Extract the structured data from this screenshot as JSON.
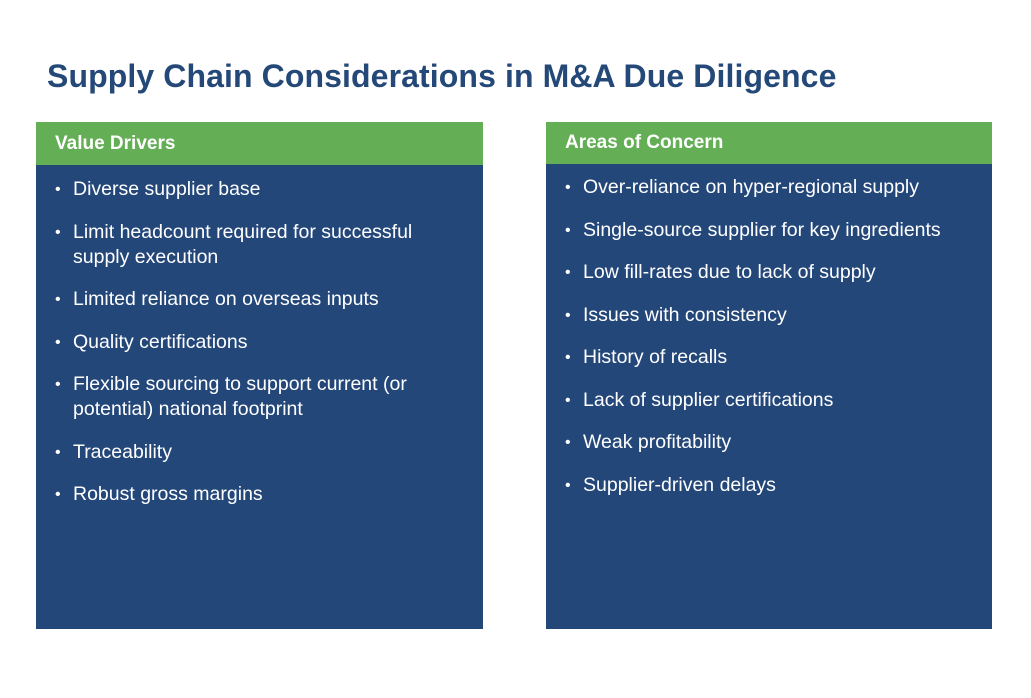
{
  "page": {
    "title": "Supply Chain Considerations in M&A Due Diligence"
  },
  "value_drivers": {
    "header": "Value Drivers",
    "items": [
      "Diverse supplier base",
      "Limit headcount required for successful supply execution",
      "Limited reliance on overseas inputs",
      "Quality certifications",
      "Flexible sourcing to support current (or potential) national footprint",
      "Traceability",
      "Robust gross margins"
    ]
  },
  "areas_of_concern": {
    "header": "Areas of Concern",
    "items": [
      "Over-reliance on hyper-regional supply",
      "Single-source supplier for key ingredients",
      "Low fill-rates due to lack of supply",
      "Issues with consistency",
      "History of recalls",
      "Lack of supplier certifications",
      "Weak profitability",
      "Supplier-driven delays"
    ]
  },
  "colors": {
    "title": "#244878",
    "panel_background": "#24477a",
    "header_background": "#64ae56",
    "text_on_panel": "#ffffff"
  },
  "bullet_glyph": "•"
}
